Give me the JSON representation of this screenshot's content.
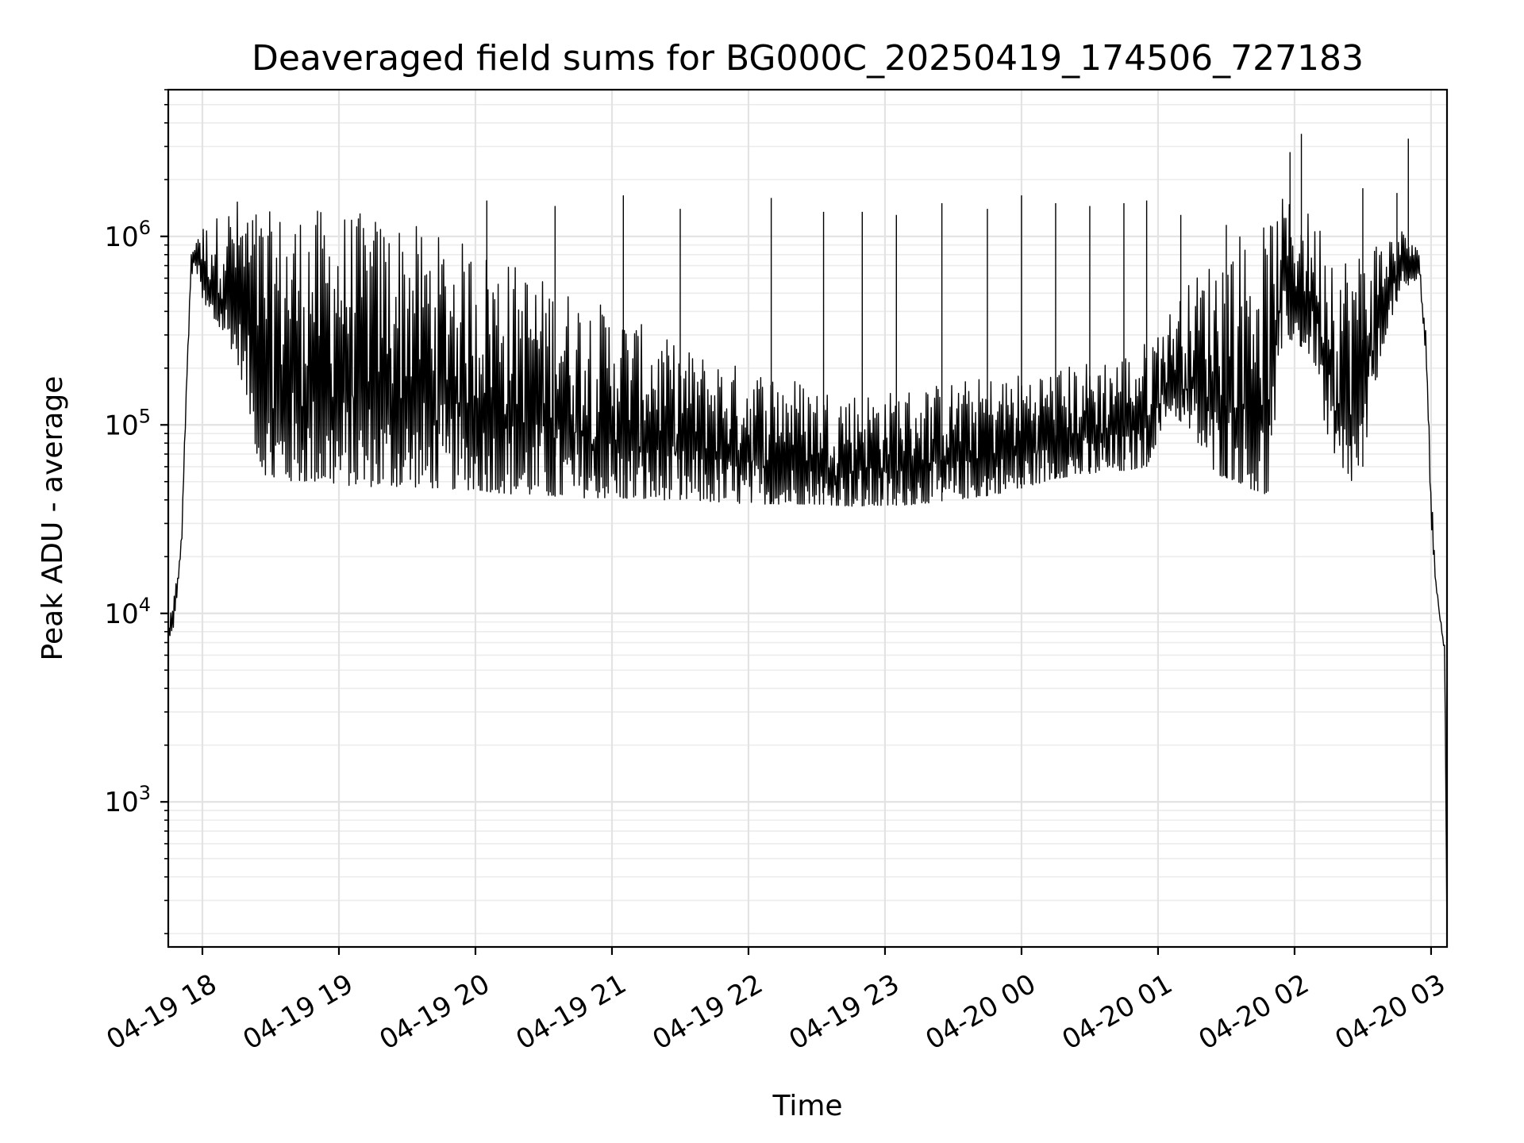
{
  "chart_data": {
    "type": "line",
    "title": "Deaveraged field sums for BG000C_20250419_174506_727183",
    "xlabel": "Time",
    "ylabel": "Peak ADU - average",
    "yscale": "log",
    "grid": "on (major and minor)",
    "xlim": [
      "2025-04-19 17:45",
      "2025-04-20 03:07"
    ],
    "ylim": [
      170,
      6000000
    ],
    "x_tick_labels": [
      "04-19 18",
      "04-19 19",
      "04-19 20",
      "04-19 21",
      "04-19 22",
      "04-19 23",
      "04-20 00",
      "04-20 01",
      "04-20 02",
      "04-20 03"
    ],
    "y_tick_labels": [
      {
        "base": "10",
        "exp": "3",
        "value": 1000
      },
      {
        "base": "10",
        "exp": "4",
        "value": 10000
      },
      {
        "base": "10",
        "exp": "5",
        "value": 100000
      },
      {
        "base": "10",
        "exp": "6",
        "value": 1000000
      }
    ],
    "series": [
      {
        "color": "#000000",
        "x": [
          "2025-04-19 17:45",
          "2025-04-19 17:47",
          "2025-04-19 17:49",
          "2025-04-19 17:51",
          "2025-04-19 17:53",
          "2025-04-19 17:55",
          "2025-04-19 17:57",
          "2025-04-19 17:59",
          "2025-04-19 18:01",
          "2025-04-19 18:05",
          "2025-04-19 18:10",
          "2025-04-19 18:15",
          "2025-04-19 18:20",
          "2025-04-19 18:25",
          "2025-04-19 18:30",
          "2025-04-19 18:40",
          "2025-04-19 18:50",
          "2025-04-19 19:00",
          "2025-04-19 19:15",
          "2025-04-19 19:30",
          "2025-04-19 19:45",
          "2025-04-19 20:00",
          "2025-04-19 20:15",
          "2025-04-19 20:30",
          "2025-04-19 20:45",
          "2025-04-19 21:00",
          "2025-04-19 21:15",
          "2025-04-19 21:30",
          "2025-04-19 21:45",
          "2025-04-19 22:00",
          "2025-04-19 22:15",
          "2025-04-19 22:30",
          "2025-04-19 22:45",
          "2025-04-19 23:00",
          "2025-04-19 23:15",
          "2025-04-19 23:30",
          "2025-04-19 23:45",
          "2025-04-20 00:00",
          "2025-04-20 00:15",
          "2025-04-20 00:30",
          "2025-04-20 00:45",
          "2025-04-20 00:55",
          "2025-04-20 01:05",
          "2025-04-20 01:15",
          "2025-04-20 01:25",
          "2025-04-20 01:35",
          "2025-04-20 01:42",
          "2025-04-20 01:48",
          "2025-04-20 01:55",
          "2025-04-20 02:05",
          "2025-04-20 02:10",
          "2025-04-20 02:15",
          "2025-04-20 02:20",
          "2025-04-20 02:25",
          "2025-04-20 02:30",
          "2025-04-20 02:35",
          "2025-04-20 02:40",
          "2025-04-20 02:45",
          "2025-04-20 02:50",
          "2025-04-20 02:55",
          "2025-04-20 02:58",
          "2025-04-20 03:00",
          "2025-04-20 03:02",
          "2025-04-20 03:04",
          "2025-04-20 03:06",
          "2025-04-20 03:07"
        ],
        "hi": [
          9000,
          11000,
          17000,
          30000,
          180000,
          800000,
          1150000,
          1200000,
          1150000,
          1250000,
          1400000,
          1600000,
          1550000,
          1400000,
          1350000,
          1400000,
          1400000,
          1400000,
          1300000,
          1200000,
          1000000,
          900000,
          750000,
          600000,
          500000,
          420000,
          330000,
          260000,
          230000,
          200000,
          190000,
          160000,
          150000,
          150000,
          160000,
          170000,
          180000,
          190000,
          200000,
          220000,
          240000,
          280000,
          400000,
          600000,
          800000,
          1100000,
          1000000,
          1200000,
          1600000,
          1400000,
          1200000,
          1200000,
          900000,
          800000,
          900000,
          1000000,
          1000000,
          1100000,
          1100000,
          800000,
          300000,
          50000,
          16000,
          10000,
          7000,
          200
        ],
        "lo": [
          7000,
          8000,
          12000,
          25000,
          150000,
          600000,
          700000,
          500000,
          400000,
          350000,
          300000,
          220000,
          130000,
          60000,
          50000,
          50000,
          50000,
          48000,
          47000,
          47000,
          46000,
          45000,
          43000,
          42000,
          41000,
          41000,
          40000,
          40000,
          39000,
          38000,
          38000,
          38000,
          37000,
          37000,
          38000,
          40000,
          42000,
          46000,
          52000,
          55000,
          57000,
          60000,
          120000,
          90000,
          55000,
          50000,
          45000,
          40000,
          300000,
          250000,
          200000,
          70000,
          48000,
          50000,
          60000,
          150000,
          300000,
          450000,
          550000,
          600000,
          200000,
          30000,
          14000,
          9000,
          6000,
          200
        ],
        "spikes": [
          {
            "x": "2025-04-19 20:05",
            "y": 1550000
          },
          {
            "x": "2025-04-19 20:35",
            "y": 1450000
          },
          {
            "x": "2025-04-19 21:05",
            "y": 1650000
          },
          {
            "x": "2025-04-19 21:30",
            "y": 1400000
          },
          {
            "x": "2025-04-19 22:10",
            "y": 1600000
          },
          {
            "x": "2025-04-19 22:33",
            "y": 1350000
          },
          {
            "x": "2025-04-19 22:50",
            "y": 1350000
          },
          {
            "x": "2025-04-19 23:05",
            "y": 1300000
          },
          {
            "x": "2025-04-19 23:25",
            "y": 1500000
          },
          {
            "x": "2025-04-19 23:45",
            "y": 1400000
          },
          {
            "x": "2025-04-20 00:00",
            "y": 1650000
          },
          {
            "x": "2025-04-20 00:15",
            "y": 1500000
          },
          {
            "x": "2025-04-20 00:30",
            "y": 1450000
          },
          {
            "x": "2025-04-20 00:45",
            "y": 1500000
          },
          {
            "x": "2025-04-20 00:55",
            "y": 1550000
          },
          {
            "x": "2025-04-20 01:10",
            "y": 1300000
          },
          {
            "x": "2025-04-20 01:30",
            "y": 1150000
          },
          {
            "x": "2025-04-20 02:03",
            "y": 3500000
          },
          {
            "x": "2025-04-20 01:58",
            "y": 2800000
          },
          {
            "x": "2025-04-20 02:30",
            "y": 1800000
          },
          {
            "x": "2025-04-20 02:45",
            "y": 1700000
          },
          {
            "x": "2025-04-20 02:50",
            "y": 3300000
          }
        ]
      }
    ]
  }
}
